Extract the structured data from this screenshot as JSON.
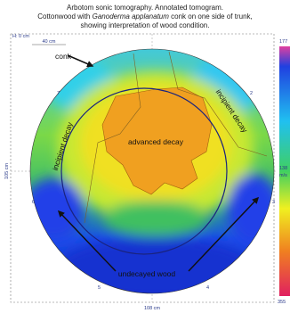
{
  "header": {
    "line1": "Arbotom sonic tomography. Annotated tomogram.",
    "line2_before": "Cottonwood with",
    "line2_italic": "Ganoderma applanatum",
    "line2_after": "conk on one side of trunk,",
    "line3": "showing interpretation of wood condition."
  },
  "scale": {
    "origin": "H: 0 cm",
    "tick": "40 cm",
    "height": "105 cm",
    "width": "108 cm"
  },
  "labels": {
    "conk": "conk",
    "advanced": "advanced decay",
    "incipient_left": "incipient decay",
    "incipient_right": "incipient decay",
    "undecayed": "undecayed wood"
  },
  "sensors": [
    "7",
    "2",
    "6",
    "3",
    "5",
    "4"
  ],
  "colorbar": {
    "top": "177",
    "middle": "138",
    "unit": "m/s",
    "bottom": "355"
  }
}
